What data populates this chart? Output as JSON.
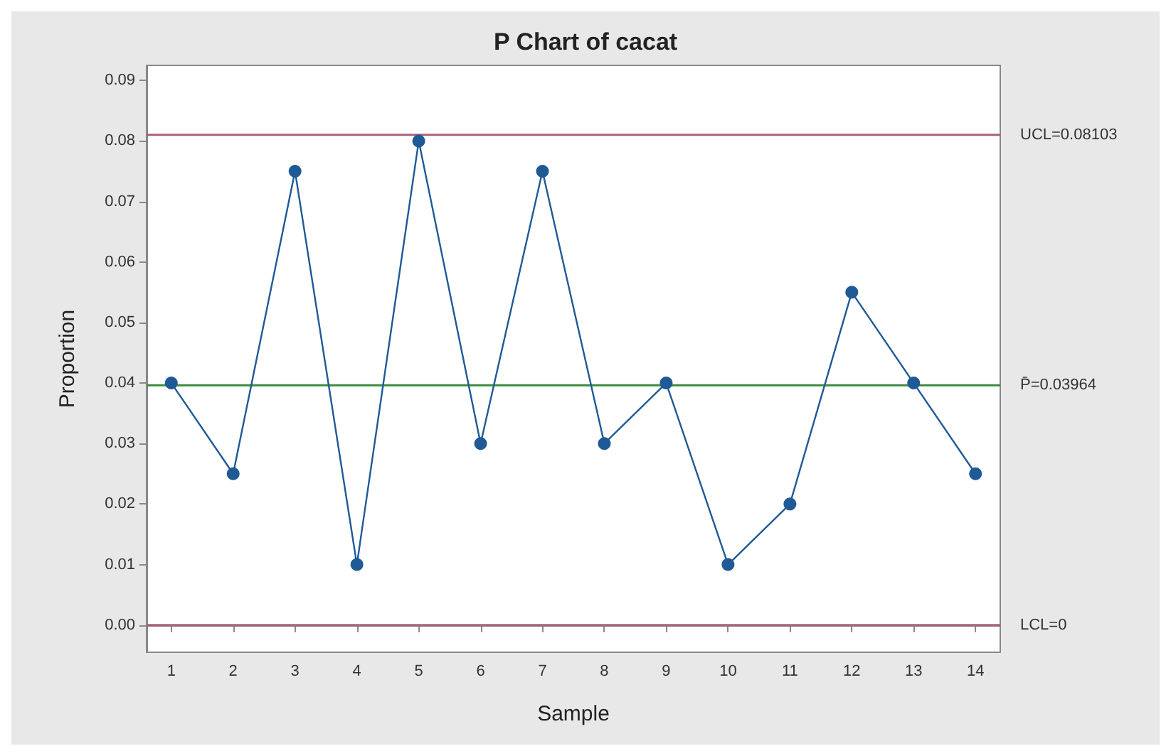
{
  "chart_data": {
    "type": "line",
    "title": "P Chart of cacat",
    "xlabel": "Sample",
    "ylabel": "Proportion",
    "x": [
      1,
      2,
      3,
      4,
      5,
      6,
      7,
      8,
      9,
      10,
      11,
      12,
      13,
      14
    ],
    "series": [
      {
        "color": "#1f5a96",
        "values": [
          0.04,
          0.025,
          0.075,
          0.01,
          0.08,
          0.03,
          0.075,
          0.03,
          0.04,
          0.01,
          0.02,
          0.055,
          0.04,
          0.025
        ]
      }
    ],
    "xlim": [
      0.6,
      14.4
    ],
    "xticks": [
      1,
      2,
      3,
      4,
      5,
      6,
      7,
      8,
      9,
      10,
      11,
      12,
      13,
      14
    ],
    "ylim": [
      -0.0045,
      0.0925
    ],
    "yticks": [
      {
        "value": 0,
        "label": "0.00"
      },
      {
        "value": 0.01,
        "label": "0.01"
      },
      {
        "value": 0.02,
        "label": "0.02"
      },
      {
        "value": 0.03,
        "label": "0.03"
      },
      {
        "value": 0.04,
        "label": "0.04"
      },
      {
        "value": 0.05,
        "label": "0.05"
      },
      {
        "value": 0.06,
        "label": "0.06"
      },
      {
        "value": 0.07,
        "label": "0.07"
      },
      {
        "value": 0.08,
        "label": "0.08"
      },
      {
        "value": 0.09,
        "label": "0.09"
      }
    ],
    "ref_lines": [
      {
        "axis": "y",
        "value": 0.08103,
        "label": "UCL=0.08103",
        "color": "#a8607a"
      },
      {
        "axis": "y",
        "value": 0.03964,
        "label": "P̄=0.03964",
        "color": "#3c8a3c"
      },
      {
        "axis": "y",
        "value": 0,
        "label": "LCL=0",
        "color": "#a8607a"
      }
    ],
    "grid": false,
    "marker": "circle",
    "line_style": "solid"
  }
}
